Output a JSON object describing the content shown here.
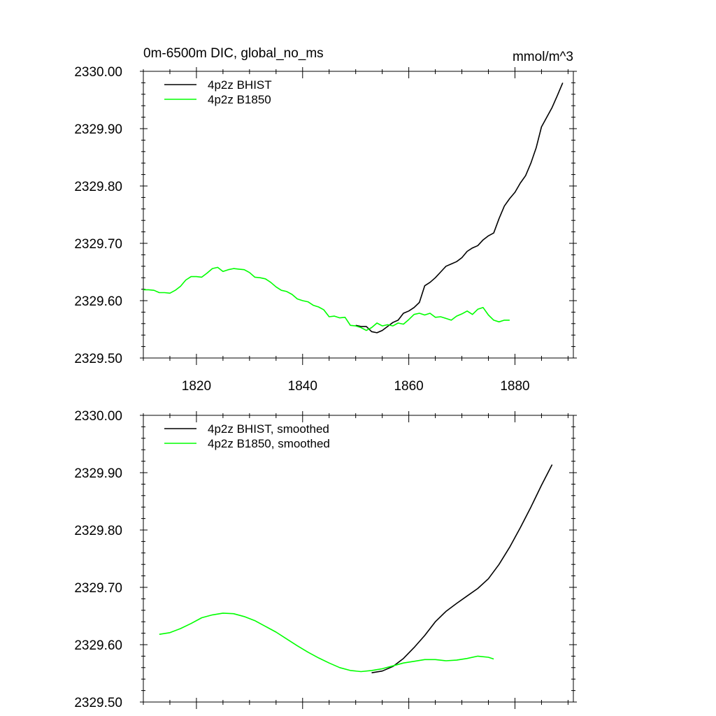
{
  "chart_data": [
    {
      "type": "line",
      "title": "0m-6500m DIC, global_no_ms",
      "units": "mmol/m^3",
      "xlabel": "",
      "ylabel": "",
      "xlim": [
        1810,
        1891
      ],
      "ylim": [
        2329.5,
        2330.0
      ],
      "x_ticks": [
        1820,
        1840,
        1860,
        1880
      ],
      "x_tick_labels": [
        "1820",
        "1840",
        "1860",
        "1880"
      ],
      "y_ticks": [
        2329.5,
        2329.6,
        2329.7,
        2329.8,
        2329.9,
        2330.0
      ],
      "y_tick_labels": [
        "2329.50",
        "2329.60",
        "2329.70",
        "2329.80",
        "2329.90",
        "2330.00"
      ],
      "legend_position": "top-left",
      "series": [
        {
          "name": "4p2z BHIST",
          "color": "#000000",
          "x": [
            1850,
            1851,
            1852,
            1853,
            1854,
            1855,
            1856,
            1857,
            1858,
            1859,
            1860,
            1861,
            1862,
            1863,
            1864,
            1865,
            1866,
            1867,
            1868,
            1869,
            1870,
            1871,
            1872,
            1873,
            1874,
            1875,
            1876,
            1877,
            1878,
            1879,
            1880,
            1881,
            1882,
            1883,
            1884,
            1885,
            1886,
            1887,
            1888,
            1889
          ],
          "values": [
            2329.557,
            2329.555,
            2329.555,
            2329.546,
            2329.544,
            2329.548,
            2329.555,
            2329.562,
            2329.566,
            2329.578,
            2329.582,
            2329.588,
            2329.597,
            2329.626,
            2329.632,
            2329.64,
            2329.65,
            2329.66,
            2329.664,
            2329.668,
            2329.675,
            2329.686,
            2329.692,
            2329.696,
            2329.706,
            2329.713,
            2329.718,
            2329.743,
            2329.765,
            2329.778,
            2329.789,
            2329.805,
            2329.818,
            2329.84,
            2329.867,
            2329.903,
            2329.92,
            2329.937,
            2329.958,
            2329.98
          ]
        },
        {
          "name": "4p2z B1850",
          "color": "#00ff00",
          "x": [
            1810,
            1811,
            1812,
            1813,
            1814,
            1815,
            1816,
            1817,
            1818,
            1819,
            1820,
            1821,
            1822,
            1823,
            1824,
            1825,
            1826,
            1827,
            1828,
            1829,
            1830,
            1831,
            1832,
            1833,
            1834,
            1835,
            1836,
            1837,
            1838,
            1839,
            1840,
            1841,
            1842,
            1843,
            1844,
            1845,
            1846,
            1847,
            1848,
            1849,
            1850,
            1851,
            1852,
            1853,
            1854,
            1855,
            1856,
            1857,
            1858,
            1859,
            1860,
            1861,
            1862,
            1863,
            1864,
            1865,
            1866,
            1867,
            1868,
            1869,
            1870,
            1871,
            1872,
            1873,
            1874,
            1875,
            1876,
            1877,
            1878,
            1879
          ],
          "values": [
            2329.619,
            2329.619,
            2329.618,
            2329.614,
            2329.614,
            2329.613,
            2329.618,
            2329.625,
            2329.636,
            2329.642,
            2329.642,
            2329.641,
            2329.648,
            2329.656,
            2329.658,
            2329.651,
            2329.654,
            2329.656,
            2329.655,
            2329.654,
            2329.649,
            2329.641,
            2329.64,
            2329.638,
            2329.632,
            2329.624,
            2329.618,
            2329.616,
            2329.611,
            2329.603,
            2329.6,
            2329.598,
            2329.592,
            2329.589,
            2329.584,
            2329.572,
            2329.573,
            2329.57,
            2329.571,
            2329.557,
            2329.556,
            2329.553,
            2329.548,
            2329.553,
            2329.561,
            2329.556,
            2329.558,
            2329.556,
            2329.561,
            2329.559,
            2329.567,
            2329.576,
            2329.578,
            2329.575,
            2329.578,
            2329.571,
            2329.572,
            2329.569,
            2329.566,
            2329.573,
            2329.577,
            2329.582,
            2329.576,
            2329.585,
            2329.588,
            2329.575,
            2329.566,
            2329.563,
            2329.566,
            2329.566
          ]
        }
      ]
    },
    {
      "type": "line",
      "title": "",
      "xlabel": "",
      "ylabel": "",
      "xlim": [
        1810,
        1891
      ],
      "ylim": [
        2329.5,
        2330.0
      ],
      "x_ticks": [
        1820,
        1840,
        1860,
        1880
      ],
      "y_ticks": [
        2329.5,
        2329.6,
        2329.7,
        2329.8,
        2329.9,
        2330.0
      ],
      "y_tick_labels": [
        "2329.50",
        "2329.60",
        "2329.70",
        "2329.80",
        "2329.90",
        "2330.00"
      ],
      "legend_position": "top-left",
      "series": [
        {
          "name": "4p2z BHIST, smoothed",
          "color": "#000000",
          "x": [
            1853,
            1855,
            1857,
            1859,
            1861,
            1863,
            1865,
            1867,
            1869,
            1871,
            1873,
            1875,
            1877,
            1879,
            1881,
            1883,
            1885,
            1887
          ],
          "values": [
            2329.551,
            2329.554,
            2329.562,
            2329.576,
            2329.595,
            2329.616,
            2329.64,
            2329.658,
            2329.672,
            2329.685,
            2329.698,
            2329.715,
            2329.74,
            2329.77,
            2329.804,
            2329.84,
            2329.878,
            2329.914
          ]
        },
        {
          "name": "4p2z B1850, smoothed",
          "color": "#00ff00",
          "x": [
            1813,
            1815,
            1817,
            1819,
            1821,
            1823,
            1825,
            1827,
            1829,
            1831,
            1833,
            1835,
            1837,
            1839,
            1841,
            1843,
            1845,
            1847,
            1849,
            1851,
            1853,
            1855,
            1857,
            1859,
            1861,
            1863,
            1865,
            1867,
            1869,
            1871,
            1873,
            1875,
            1876
          ],
          "values": [
            2329.618,
            2329.621,
            2329.628,
            2329.637,
            2329.647,
            2329.652,
            2329.655,
            2329.654,
            2329.649,
            2329.642,
            2329.632,
            2329.622,
            2329.61,
            2329.598,
            2329.587,
            2329.577,
            2329.568,
            2329.56,
            2329.555,
            2329.553,
            2329.555,
            2329.558,
            2329.563,
            2329.568,
            2329.571,
            2329.574,
            2329.574,
            2329.572,
            2329.573,
            2329.576,
            2329.58,
            2329.578,
            2329.575
          ]
        }
      ]
    }
  ]
}
